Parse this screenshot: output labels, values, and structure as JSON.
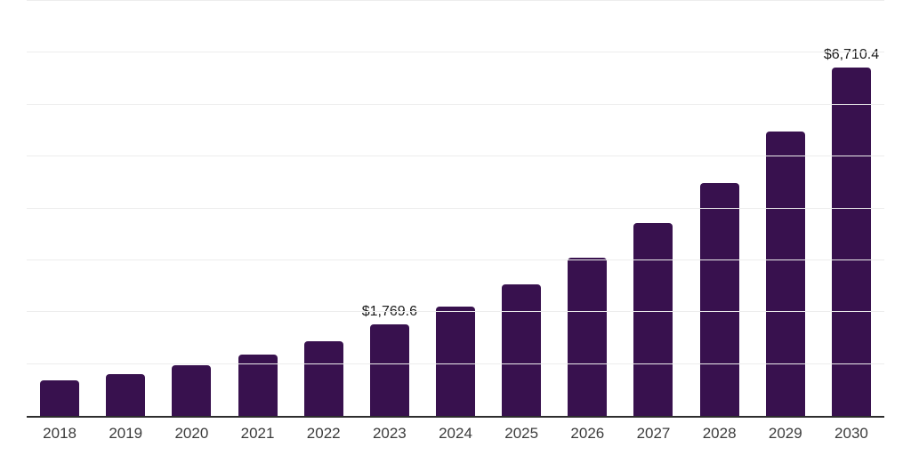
{
  "chart_data": {
    "type": "bar",
    "title": "",
    "xlabel": "",
    "ylabel": "",
    "categories": [
      "2018",
      "2019",
      "2020",
      "2021",
      "2022",
      "2023",
      "2024",
      "2025",
      "2026",
      "2027",
      "2028",
      "2029",
      "2030"
    ],
    "values": [
      680,
      805,
      975,
      1180,
      1440,
      1769.6,
      2105,
      2530,
      3055,
      3715,
      4490,
      5485,
      6710.4
    ],
    "data_labels": [
      "",
      "",
      "",
      "",
      "",
      "$1,769.6",
      "",
      "",
      "",
      "",
      "",
      "",
      "$6,710.4"
    ],
    "ylim": [
      0,
      8000
    ],
    "gridline_step": 1000,
    "grid": "horizontal-only",
    "legend_position": "none",
    "y_tick_labels_visible": false,
    "colors": {
      "bar": "#38114e",
      "axis_line": "#2d2d2d",
      "gridline": "#ededed",
      "value_label": "#1b1b1b",
      "tick_label": "#3c3c3c",
      "background": "#ffffff"
    }
  }
}
